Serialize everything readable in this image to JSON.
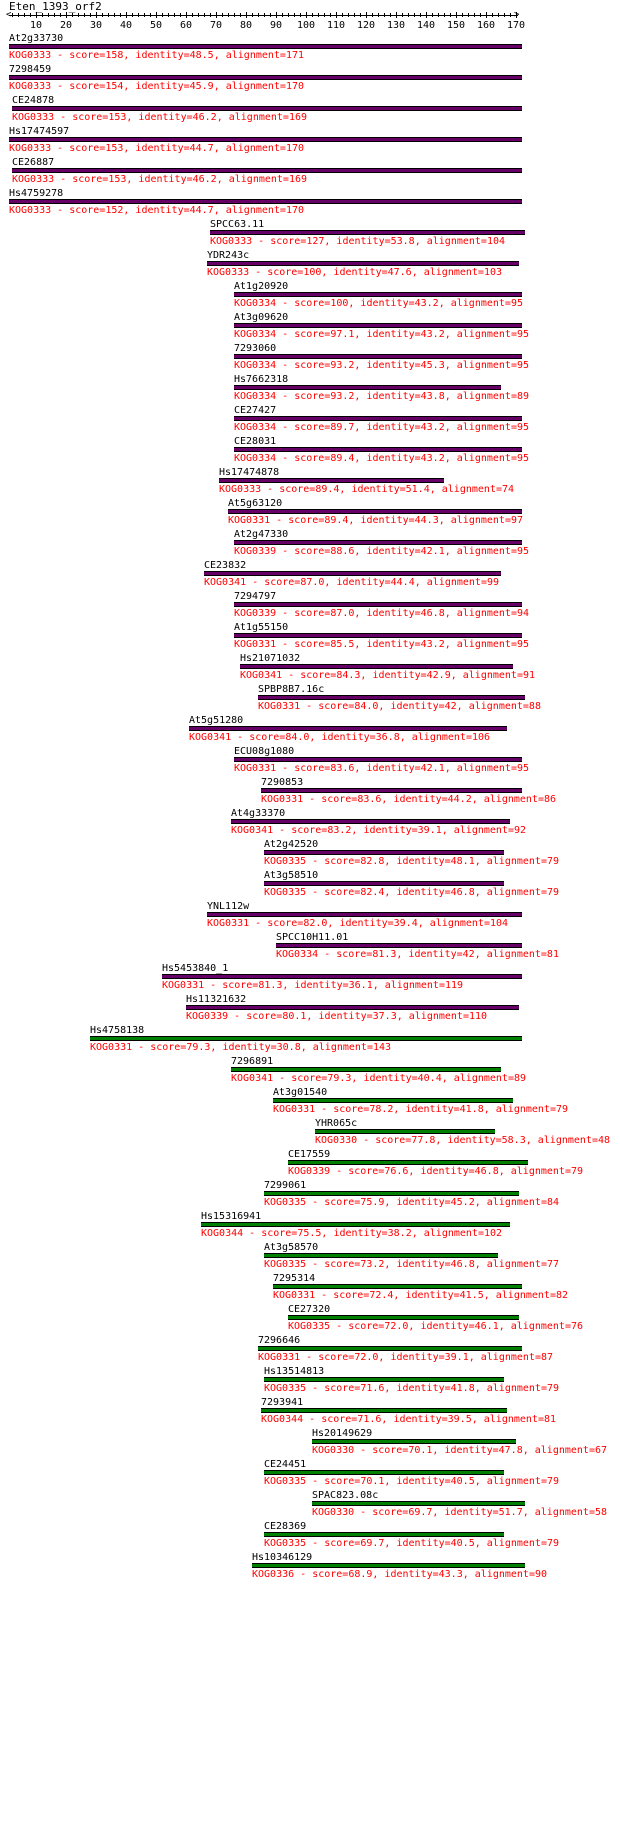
{
  "query": {
    "name": "Eten_1393_orf2",
    "length": 171
  },
  "axis": {
    "min": 1,
    "max": 171,
    "labels": [
      "10",
      "20",
      "30",
      "40",
      "50",
      "60",
      "70",
      "80",
      "90",
      "100",
      "110",
      "120",
      "130",
      "140",
      "150",
      "160",
      "170"
    ]
  },
  "colors": {
    "bar_purple": "#660066",
    "bar_green": "#008000",
    "desc_text": "#ff0000",
    "name_text": "#000000"
  },
  "hits": [
    {
      "name": "At2g33730",
      "kog": "KOG0333",
      "score": "158",
      "identity": "48.5",
      "alignment": "171",
      "start": 1,
      "end": 171,
      "color": "purple"
    },
    {
      "name": "7298459",
      "kog": "KOG0333",
      "score": "154",
      "identity": "45.9",
      "alignment": "170",
      "start": 1,
      "end": 171,
      "color": "purple"
    },
    {
      "name": "CE24878",
      "kog": "KOG0333",
      "score": "153",
      "identity": "46.2",
      "alignment": "169",
      "start": 2,
      "end": 171,
      "color": "purple"
    },
    {
      "name": "Hs17474597",
      "kog": "KOG0333",
      "score": "153",
      "identity": "44.7",
      "alignment": "170",
      "start": 1,
      "end": 171,
      "color": "purple"
    },
    {
      "name": "CE26887",
      "kog": "KOG0333",
      "score": "153",
      "identity": "46.2",
      "alignment": "169",
      "start": 2,
      "end": 171,
      "color": "purple"
    },
    {
      "name": "Hs4759278",
      "kog": "KOG0333",
      "score": "152",
      "identity": "44.7",
      "alignment": "170",
      "start": 1,
      "end": 171,
      "color": "purple"
    },
    {
      "name": "SPCC63.11",
      "kog": "KOG0333",
      "score": "127",
      "identity": "53.8",
      "alignment": "104",
      "start": 68,
      "end": 172,
      "color": "purple"
    },
    {
      "name": "YDR243c",
      "kog": "KOG0333",
      "score": "100",
      "identity": "47.6",
      "alignment": "103",
      "start": 67,
      "end": 170,
      "color": "purple"
    },
    {
      "name": "At1g20920",
      "kog": "KOG0334",
      "score": "100",
      "identity": "43.2",
      "alignment": "95",
      "start": 76,
      "end": 171,
      "color": "purple"
    },
    {
      "name": "At3g09620",
      "kog": "KOG0334",
      "score": "97.1",
      "identity": "43.2",
      "alignment": "95",
      "start": 76,
      "end": 171,
      "color": "purple"
    },
    {
      "name": "7293060",
      "kog": "KOG0334",
      "score": "93.2",
      "identity": "45.3",
      "alignment": "95",
      "start": 76,
      "end": 171,
      "color": "purple"
    },
    {
      "name": "Hs7662318",
      "kog": "KOG0334",
      "score": "93.2",
      "identity": "43.8",
      "alignment": "89",
      "start": 76,
      "end": 164,
      "color": "purple"
    },
    {
      "name": "CE27427",
      "kog": "KOG0334",
      "score": "89.7",
      "identity": "43.2",
      "alignment": "95",
      "start": 76,
      "end": 171,
      "color": "purple"
    },
    {
      "name": "CE28031",
      "kog": "KOG0334",
      "score": "89.4",
      "identity": "43.2",
      "alignment": "95",
      "start": 76,
      "end": 171,
      "color": "purple"
    },
    {
      "name": "Hs17474878",
      "kog": "KOG0333",
      "score": "89.4",
      "identity": "51.4",
      "alignment": "74",
      "start": 71,
      "end": 145,
      "color": "purple"
    },
    {
      "name": "At5g63120",
      "kog": "KOG0331",
      "score": "89.4",
      "identity": "44.3",
      "alignment": "97",
      "start": 74,
      "end": 171,
      "color": "purple"
    },
    {
      "name": "At2g47330",
      "kog": "KOG0339",
      "score": "88.6",
      "identity": "42.1",
      "alignment": "95",
      "start": 76,
      "end": 171,
      "color": "purple"
    },
    {
      "name": "CE23832",
      "kog": "KOG0341",
      "score": "87.0",
      "identity": "44.4",
      "alignment": "99",
      "start": 66,
      "end": 164,
      "color": "purple"
    },
    {
      "name": "7294797",
      "kog": "KOG0339",
      "score": "87.0",
      "identity": "46.8",
      "alignment": "94",
      "start": 76,
      "end": 171,
      "color": "purple"
    },
    {
      "name": "At1g55150",
      "kog": "KOG0331",
      "score": "85.5",
      "identity": "43.2",
      "alignment": "95",
      "start": 76,
      "end": 171,
      "color": "purple"
    },
    {
      "name": "Hs21071032",
      "kog": "KOG0341",
      "score": "84.3",
      "identity": "42.9",
      "alignment": "91",
      "start": 78,
      "end": 168,
      "color": "purple"
    },
    {
      "name": "SPBP8B7.16c",
      "kog": "KOG0331",
      "score": "84.0",
      "identity": "42",
      "alignment": "88",
      "start": 84,
      "end": 172,
      "color": "purple"
    },
    {
      "name": "At5g51280",
      "kog": "KOG0341",
      "score": "84.0",
      "identity": "36.8",
      "alignment": "106",
      "start": 61,
      "end": 166,
      "color": "purple"
    },
    {
      "name": "ECU08g1080",
      "kog": "KOG0331",
      "score": "83.6",
      "identity": "42.1",
      "alignment": "95",
      "start": 76,
      "end": 171,
      "color": "purple"
    },
    {
      "name": "7290853",
      "kog": "KOG0331",
      "score": "83.6",
      "identity": "44.2",
      "alignment": "86",
      "start": 85,
      "end": 171,
      "color": "purple"
    },
    {
      "name": "At4g33370",
      "kog": "KOG0341",
      "score": "83.2",
      "identity": "39.1",
      "alignment": "92",
      "start": 75,
      "end": 167,
      "color": "purple"
    },
    {
      "name": "At2g42520",
      "kog": "KOG0335",
      "score": "82.8",
      "identity": "48.1",
      "alignment": "79",
      "start": 86,
      "end": 165,
      "color": "purple"
    },
    {
      "name": "At3g58510",
      "kog": "KOG0335",
      "score": "82.4",
      "identity": "46.8",
      "alignment": "79",
      "start": 86,
      "end": 165,
      "color": "purple"
    },
    {
      "name": "YNL112w",
      "kog": "KOG0331",
      "score": "82.0",
      "identity": "39.4",
      "alignment": "104",
      "start": 67,
      "end": 171,
      "color": "purple"
    },
    {
      "name": "SPCC10H11.01",
      "kog": "KOG0334",
      "score": "81.3",
      "identity": "42",
      "alignment": "81",
      "start": 90,
      "end": 171,
      "color": "purple"
    },
    {
      "name": "Hs5453840_1",
      "kog": "KOG0331",
      "score": "81.3",
      "identity": "36.1",
      "alignment": "119",
      "start": 52,
      "end": 171,
      "color": "purple"
    },
    {
      "name": "Hs11321632",
      "kog": "KOG0339",
      "score": "80.1",
      "identity": "37.3",
      "alignment": "110",
      "start": 60,
      "end": 170,
      "color": "purple"
    },
    {
      "name": "Hs4758138",
      "kog": "KOG0331",
      "score": "79.3",
      "identity": "30.8",
      "alignment": "143",
      "start": 28,
      "end": 171,
      "color": "green"
    },
    {
      "name": "7296891",
      "kog": "KOG0341",
      "score": "79.3",
      "identity": "40.4",
      "alignment": "89",
      "start": 75,
      "end": 164,
      "color": "green"
    },
    {
      "name": "At3g01540",
      "kog": "KOG0331",
      "score": "78.2",
      "identity": "41.8",
      "alignment": "79",
      "start": 89,
      "end": 168,
      "color": "green"
    },
    {
      "name": "YHR065c",
      "kog": "KOG0330",
      "score": "77.8",
      "identity": "58.3",
      "alignment": "48",
      "start": 103,
      "end": 162,
      "color": "green"
    },
    {
      "name": "CE17559",
      "kog": "KOG0339",
      "score": "76.6",
      "identity": "46.8",
      "alignment": "79",
      "start": 94,
      "end": 173,
      "color": "green"
    },
    {
      "name": "7299061",
      "kog": "KOG0335",
      "score": "75.9",
      "identity": "45.2",
      "alignment": "84",
      "start": 86,
      "end": 170,
      "color": "green"
    },
    {
      "name": "Hs15316941",
      "kog": "KOG0344",
      "score": "75.5",
      "identity": "38.2",
      "alignment": "102",
      "start": 65,
      "end": 167,
      "color": "green"
    },
    {
      "name": "At3g58570",
      "kog": "KOG0335",
      "score": "73.2",
      "identity": "46.8",
      "alignment": "77",
      "start": 86,
      "end": 163,
      "color": "green"
    },
    {
      "name": "7295314",
      "kog": "KOG0331",
      "score": "72.4",
      "identity": "41.5",
      "alignment": "82",
      "start": 89,
      "end": 171,
      "color": "green"
    },
    {
      "name": "CE27320",
      "kog": "KOG0335",
      "score": "72.0",
      "identity": "46.1",
      "alignment": "76",
      "start": 94,
      "end": 170,
      "color": "green"
    },
    {
      "name": "7296646",
      "kog": "KOG0331",
      "score": "72.0",
      "identity": "39.1",
      "alignment": "87",
      "start": 84,
      "end": 171,
      "color": "green"
    },
    {
      "name": "Hs13514813",
      "kog": "KOG0335",
      "score": "71.6",
      "identity": "41.8",
      "alignment": "79",
      "start": 86,
      "end": 165,
      "color": "green"
    },
    {
      "name": "7293941",
      "kog": "KOG0344",
      "score": "71.6",
      "identity": "39.5",
      "alignment": "81",
      "start": 85,
      "end": 166,
      "color": "green"
    },
    {
      "name": "Hs20149629",
      "kog": "KOG0330",
      "score": "70.1",
      "identity": "47.8",
      "alignment": "67",
      "start": 102,
      "end": 169,
      "color": "green"
    },
    {
      "name": "CE24451",
      "kog": "KOG0335",
      "score": "70.1",
      "identity": "40.5",
      "alignment": "79",
      "start": 86,
      "end": 165,
      "color": "green"
    },
    {
      "name": "SPAC823.08c",
      "kog": "KOG0330",
      "score": "69.7",
      "identity": "51.7",
      "alignment": "58",
      "start": 102,
      "end": 172,
      "color": "green"
    },
    {
      "name": "CE28369",
      "kog": "KOG0335",
      "score": "69.7",
      "identity": "40.5",
      "alignment": "79",
      "start": 86,
      "end": 165,
      "color": "green"
    },
    {
      "name": "Hs10346129",
      "kog": "KOG0336",
      "score": "68.9",
      "identity": "43.3",
      "alignment": "90",
      "start": 82,
      "end": 172,
      "color": "green"
    }
  ]
}
